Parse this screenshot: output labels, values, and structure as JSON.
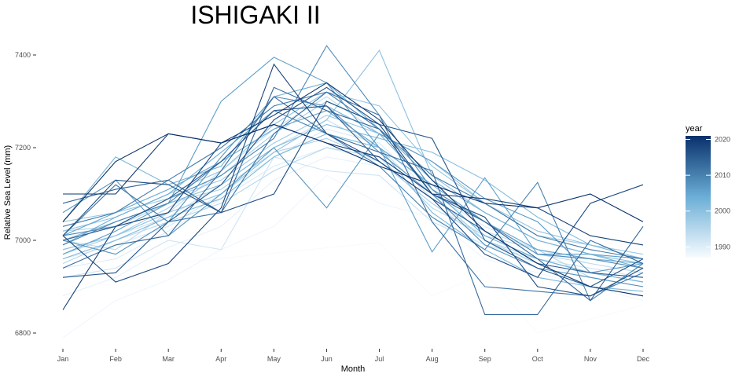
{
  "chart_data": {
    "type": "line",
    "title": "ISHIGAKI II",
    "xlabel": "Month",
    "ylabel": "Relative Sea Level (mm)",
    "categories": [
      "Jan",
      "Feb",
      "Mar",
      "Apr",
      "May",
      "Jun",
      "Jul",
      "Aug",
      "Sep",
      "Oct",
      "Nov",
      "Dec"
    ],
    "ylim": [
      6780,
      7430
    ],
    "yticks": [
      6800,
      7000,
      7200,
      7400
    ],
    "grid": false,
    "legend": {
      "title": "year",
      "placement": "right",
      "type": "colorbar",
      "range": [
        1987,
        2021
      ],
      "ticks": [
        1990,
        2000,
        2010,
        2020
      ],
      "color_low": "#f7fbff",
      "color_high": "#08306b"
    },
    "series": [
      {
        "year": 1987,
        "values": [
          null,
          null,
          6950,
          null,
          null,
          null,
          6995,
          6880,
          6930,
          6800,
          6830,
          6860
        ]
      },
      {
        "year": 1988,
        "values": [
          6790,
          6870,
          6915,
          6980,
          7030,
          7140,
          7080,
          7050,
          6960,
          6930,
          6900,
          6870
        ]
      },
      {
        "year": 1989,
        "values": [
          6880,
          6920,
          6985,
          7030,
          7130,
          7180,
          7160,
          7050,
          6990,
          6950,
          6920,
          6900
        ]
      },
      {
        "year": 1990,
        "values": [
          6940,
          6960,
          7020,
          7090,
          7160,
          7200,
          7170,
          7080,
          7010,
          6960,
          6930,
          6910
        ]
      },
      {
        "year": 1991,
        "values": [
          6960,
          6990,
          7030,
          7100,
          7180,
          7240,
          7210,
          7100,
          7030,
          6980,
          6950,
          6930
        ]
      },
      {
        "year": 1992,
        "values": [
          6920,
          6940,
          7000,
          6980,
          7180,
          7150,
          7140,
          7040,
          6990,
          6960,
          6940,
          6920
        ]
      },
      {
        "year": 1993,
        "values": [
          6980,
          7010,
          7050,
          7120,
          7200,
          7260,
          7200,
          7090,
          7020,
          6980,
          6960,
          6940
        ]
      },
      {
        "year": 1994,
        "values": [
          7000,
          6980,
          7060,
          7150,
          7240,
          7310,
          7230,
          7110,
          7040,
          6970,
          6950,
          6930
        ]
      },
      {
        "year": 1995,
        "values": [
          6950,
          7000,
          7040,
          7080,
          7150,
          7200,
          7180,
          7070,
          7010,
          6980,
          6920,
          6900
        ]
      },
      {
        "year": 1996,
        "values": [
          7020,
          7030,
          7080,
          7110,
          7190,
          7220,
          7170,
          7080,
          7000,
          6960,
          6930,
          6910
        ]
      },
      {
        "year": 1997,
        "values": [
          6970,
          7010,
          7070,
          7140,
          7230,
          7300,
          7250,
          7100,
          7000,
          6950,
          6900,
          6880
        ]
      },
      {
        "year": 1998,
        "values": [
          7040,
          7060,
          7090,
          7130,
          7210,
          7270,
          7230,
          7170,
          7080,
          7010,
          6990,
          6970
        ]
      },
      {
        "year": 1999,
        "values": [
          7020,
          7050,
          7100,
          7150,
          7250,
          7320,
          7290,
          7160,
          7080,
          7020,
          6990,
          6960
        ]
      },
      {
        "year": 2000,
        "values": [
          6980,
          7010,
          7060,
          7100,
          7190,
          7260,
          7410,
          7140,
          7060,
          7000,
          6970,
          6950
        ]
      },
      {
        "year": 2001,
        "values": [
          7000,
          7040,
          7080,
          7120,
          7200,
          7250,
          7220,
          7190,
          7130,
          7050,
          6990,
          6960
        ]
      },
      {
        "year": 2002,
        "values": [
          6960,
          7000,
          7050,
          7090,
          7180,
          7230,
          7200,
          7060,
          6980,
          6920,
          6900,
          6890
        ]
      },
      {
        "year": 2003,
        "values": [
          7040,
          7180,
          7120,
          7160,
          7310,
          7340,
          7240,
          7130,
          7060,
          7000,
          6970,
          6940
        ]
      },
      {
        "year": 2004,
        "values": [
          6990,
          7050,
          7100,
          7190,
          7280,
          7290,
          7230,
          7110,
          7010,
          6960,
          6930,
          6910
        ]
      },
      {
        "year": 2005,
        "values": [
          7010,
          7060,
          7110,
          7170,
          7240,
          7280,
          7200,
          7120,
          7040,
          6980,
          6960,
          6950
        ]
      },
      {
        "year": 2006,
        "values": [
          6970,
          7020,
          7080,
          7300,
          7395,
          7340,
          7200,
          6975,
          7135,
          6970,
          6970,
          6960
        ]
      },
      {
        "year": 2007,
        "values": [
          7060,
          7130,
          7010,
          7100,
          7200,
          7070,
          7230,
          7170,
          7090,
          7040,
          6930,
          6950
        ]
      },
      {
        "year": 2008,
        "values": [
          7000,
          6970,
          7040,
          7180,
          7310,
          7290,
          7190,
          7100,
          6990,
          6940,
          6920,
          6900
        ]
      },
      {
        "year": 2009,
        "values": [
          7010,
          7030,
          7090,
          7140,
          7220,
          7420,
          7270,
          7110,
          7040,
          6970,
          6960,
          6940
        ]
      },
      {
        "year": 2010,
        "values": [
          6990,
          7040,
          7080,
          7170,
          7280,
          7230,
          7160,
          7050,
          6980,
          7125,
          6870,
          6950
        ]
      },
      {
        "year": 2011,
        "values": [
          7030,
          7060,
          7130,
          7200,
          7290,
          7320,
          7240,
          7140,
          7080,
          7010,
          6980,
          6960
        ]
      },
      {
        "year": 2012,
        "values": [
          7010,
          7120,
          7040,
          7060,
          7230,
          7320,
          7270,
          7040,
          6900,
          6890,
          6880,
          6930
        ]
      },
      {
        "year": 2013,
        "values": [
          6940,
          6990,
          7010,
          7150,
          7310,
          7230,
          7190,
          7150,
          6840,
          6840,
          7000,
          6950
        ]
      },
      {
        "year": 2014,
        "values": [
          7080,
          7110,
          7130,
          7060,
          7330,
          7280,
          7240,
          7100,
          7040,
          6960,
          6870,
          7030
        ]
      },
      {
        "year": 2015,
        "values": [
          7000,
          7030,
          7090,
          7170,
          7280,
          7290,
          7170,
          7090,
          7020,
          6950,
          6930,
          6920
        ]
      },
      {
        "year": 2016,
        "values": [
          6920,
          6930,
          7040,
          7120,
          7260,
          7330,
          7250,
          7220,
          7000,
          6940,
          6900,
          6960
        ]
      },
      {
        "year": 2017,
        "values": [
          7010,
          7130,
          7120,
          7060,
          7100,
          7300,
          7250,
          7100,
          7050,
          6900,
          6880,
          6940
        ]
      },
      {
        "year": 2018,
        "values": [
          7010,
          6910,
          6950,
          7070,
          7380,
          7230,
          7170,
          7090,
          6970,
          6920,
          7080,
          7120
        ]
      },
      {
        "year": 2019,
        "values": [
          6850,
          7030,
          7060,
          7210,
          7250,
          7210,
          7180,
          7100,
          7090,
          7070,
          7010,
          6990
        ]
      },
      {
        "year": 2020,
        "values": [
          7100,
          7100,
          7230,
          7210,
          7270,
          7340,
          7260,
          7130,
          7020,
          6950,
          6900,
          6880
        ]
      },
      {
        "year": 2021,
        "values": [
          7040,
          7170,
          7230,
          7210,
          7250,
          7210,
          7160,
          7120,
          7080,
          7070,
          7100,
          7040
        ]
      }
    ]
  }
}
